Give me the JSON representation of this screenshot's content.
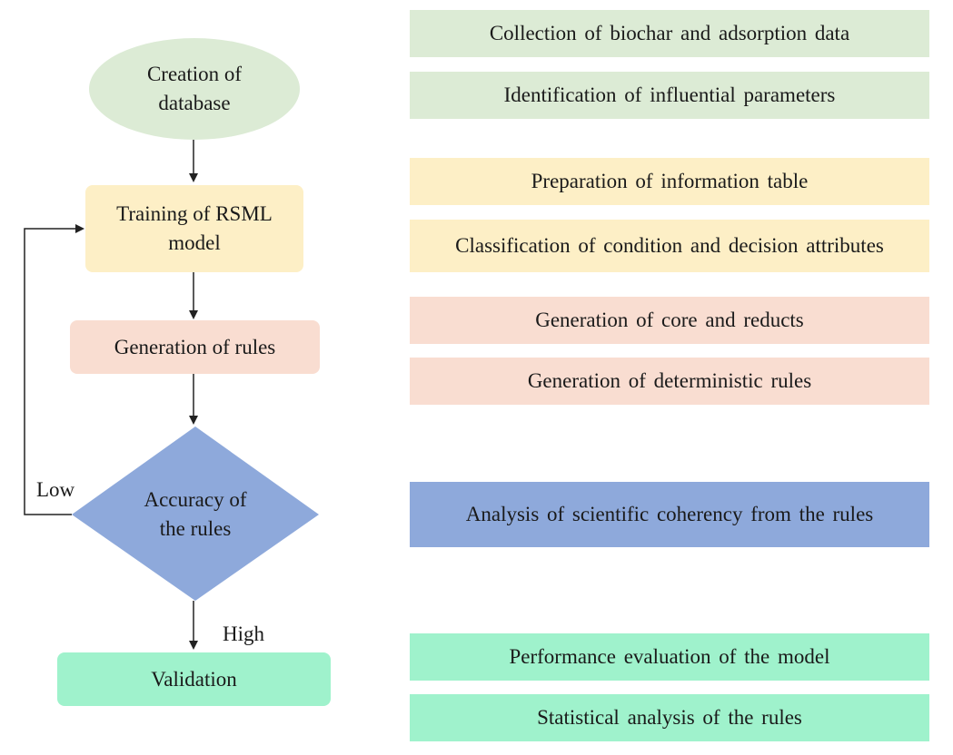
{
  "colors": {
    "green_light": "#dcebd5",
    "yellow": "#fdefc6",
    "pink": "#f9ddd1",
    "blue": "#8ea9db",
    "teal": "#9ff2cc",
    "line": "#222222"
  },
  "flow": {
    "creation": "Creation of database",
    "training": "Training of RSML model",
    "generation": "Generation of rules",
    "accuracy": "Accuracy of the rules",
    "validation": "Validation",
    "low_label": "Low",
    "high_label": "High"
  },
  "steps": [
    "Collection of biochar and adsorption data",
    "Identification of influential parameters",
    "Preparation of information table",
    "Classification of condition and decision attributes",
    "Generation of core and reducts",
    "Generation of deterministic rules",
    "Analysis of scientific coherency from the rules",
    "Performance evaluation of the model",
    "Statistical analysis of the rules"
  ]
}
